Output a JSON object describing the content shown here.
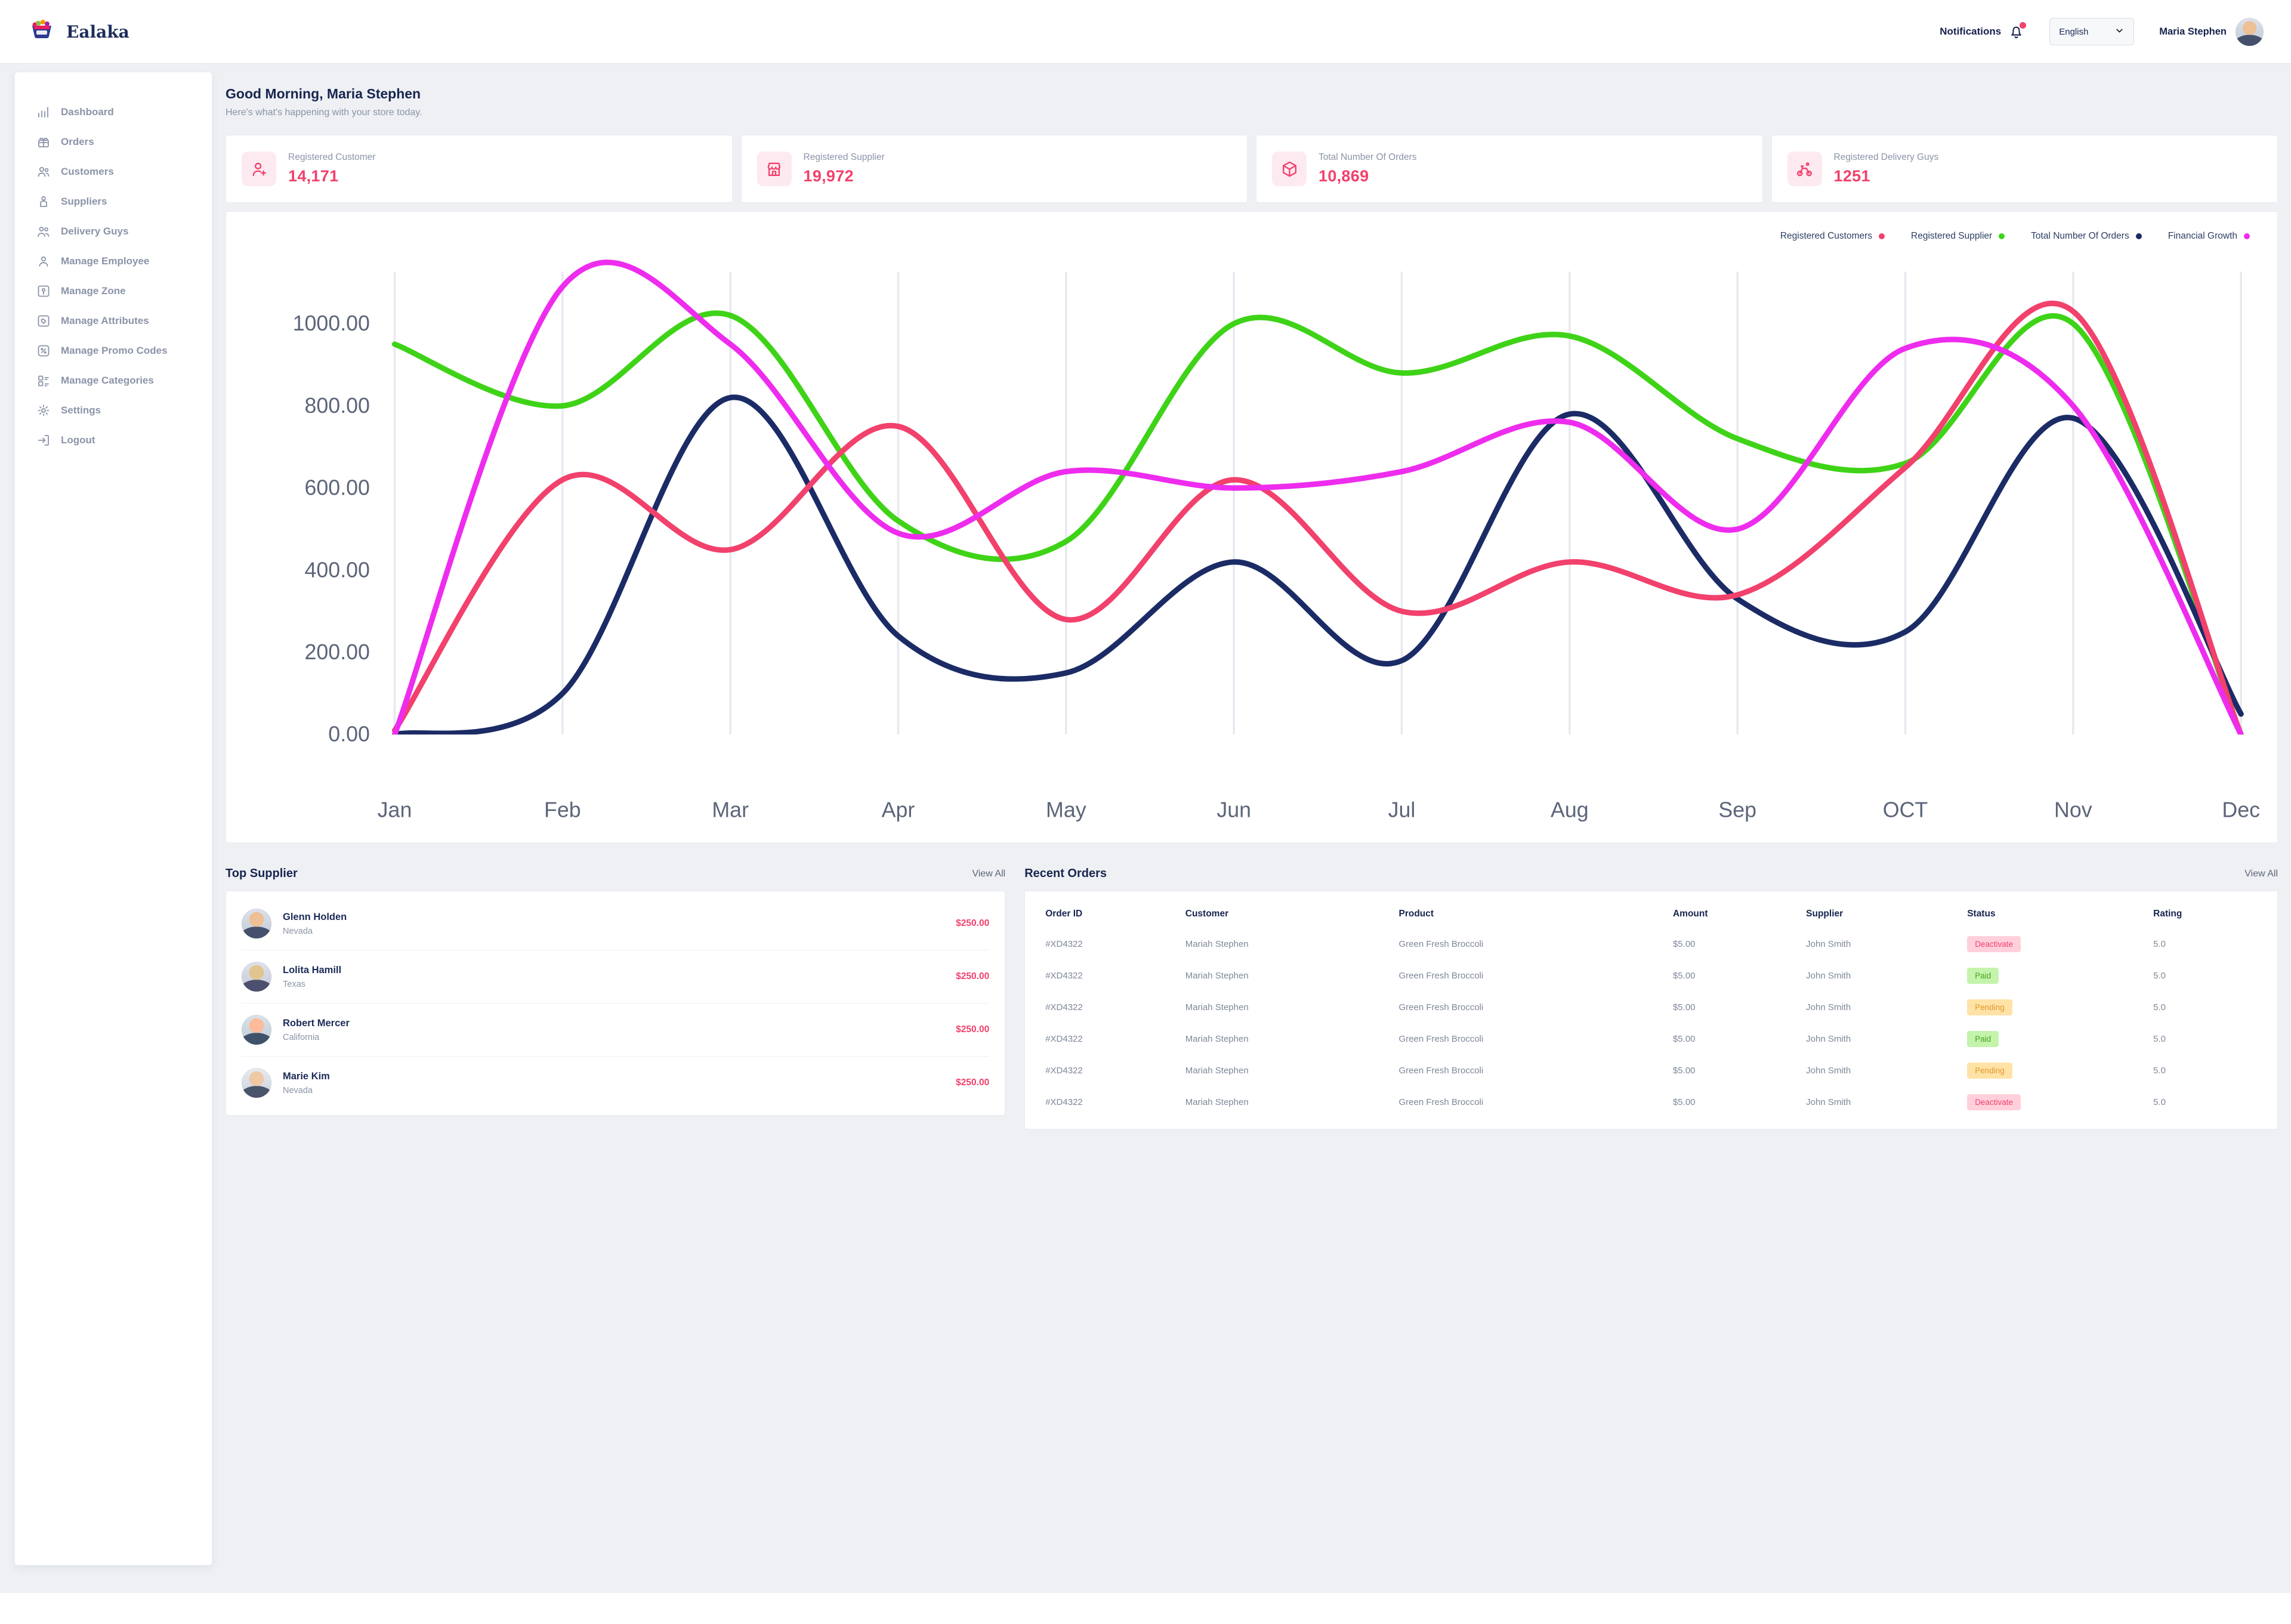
{
  "header": {
    "brand": "Ealaka",
    "notifications": "Notifications",
    "language": "English",
    "user": "Maria Stephen"
  },
  "sidebar": [
    {
      "label": "Dashboard",
      "icon": "dashboard-icon"
    },
    {
      "label": "Orders",
      "icon": "orders-icon"
    },
    {
      "label": "Customers",
      "icon": "customers-icon"
    },
    {
      "label": "Suppliers",
      "icon": "suppliers-icon"
    },
    {
      "label": "Delivery Guys",
      "icon": "delivery-icon"
    },
    {
      "label": "Manage Employee",
      "icon": "employee-icon"
    },
    {
      "label": "Manage Zone",
      "icon": "zone-icon"
    },
    {
      "label": "Manage Attributes",
      "icon": "attributes-icon"
    },
    {
      "label": "Manage Promo Codes",
      "icon": "promo-icon"
    },
    {
      "label": "Manage Categories",
      "icon": "categories-icon"
    },
    {
      "label": "Settings",
      "icon": "settings-icon"
    },
    {
      "label": "Logout",
      "icon": "logout-icon"
    }
  ],
  "greeting": {
    "title": "Good Morning, Maria Stephen",
    "subtitle": "Here's what's happening with your store today."
  },
  "stats": [
    {
      "label": "Registered Customer",
      "value": "14,171",
      "icon": "user-plus-icon"
    },
    {
      "label": "Registered Supplier",
      "value": "19,972",
      "icon": "store-icon"
    },
    {
      "label": "Total Number Of Orders",
      "value": "10,869",
      "icon": "package-icon"
    },
    {
      "label": "Registered Delivery Guys",
      "value": "1251",
      "icon": "bike-icon"
    }
  ],
  "chart_data": {
    "type": "line",
    "x": [
      "Jan",
      "Feb",
      "Mar",
      "Apr",
      "May",
      "Jun",
      "Jul",
      "Aug",
      "Sep",
      "OCT",
      "Nov",
      "Dec"
    ],
    "ylim": [
      0,
      1100
    ],
    "yticks": [
      0,
      200,
      400,
      600,
      800,
      1000
    ],
    "ytick_labels": [
      "0.00",
      "200.00",
      "400.00",
      "600.00",
      "800.00",
      "1000.00"
    ],
    "grid": "vertical",
    "legend_position": "top-right",
    "series": [
      {
        "name": "Registered Customers",
        "color": "#f1416c",
        "values": [
          10,
          620,
          450,
          750,
          280,
          620,
          300,
          420,
          340,
          650,
          1030,
          0
        ]
      },
      {
        "name": "Registered Supplier",
        "color": "#3fd318",
        "values": [
          950,
          800,
          1020,
          520,
          470,
          1000,
          880,
          970,
          720,
          660,
          1000,
          0
        ]
      },
      {
        "name": "Total Number Of Orders",
        "color": "#1b2b65",
        "values": [
          0,
          100,
          820,
          240,
          150,
          420,
          180,
          780,
          330,
          250,
          770,
          50
        ]
      },
      {
        "name": "Financial Growth",
        "color": "#ee2cee",
        "values": [
          0,
          1090,
          950,
          490,
          640,
          600,
          640,
          760,
          500,
          940,
          800,
          0
        ]
      }
    ]
  },
  "top_supplier": {
    "title": "Top Supplier",
    "view_all": "View All",
    "items": [
      {
        "name": "Glenn Holden",
        "location": "Nevada",
        "amount": "$250.00"
      },
      {
        "name": "Lolita Hamill",
        "location": "Texas",
        "amount": "$250.00"
      },
      {
        "name": "Robert Mercer",
        "location": "California",
        "amount": "$250.00"
      },
      {
        "name": "Marie Kim",
        "location": "Nevada",
        "amount": "$250.00"
      }
    ]
  },
  "recent_orders": {
    "title": "Recent Orders",
    "view_all": "View All",
    "columns": [
      "Order ID",
      "Customer",
      "Product",
      "Amount",
      "Supplier",
      "Status",
      "Rating"
    ],
    "rows": [
      {
        "order_id": "#XD4322",
        "customer": "Mariah Stephen",
        "product": "Green Fresh Broccoli",
        "amount": "$5.00",
        "supplier": "John Smith",
        "status": "Deactivate",
        "rating": "5.0"
      },
      {
        "order_id": "#XD4322",
        "customer": "Mariah Stephen",
        "product": "Green Fresh Broccoli",
        "amount": "$5.00",
        "supplier": "John Smith",
        "status": "Paid",
        "rating": "5.0"
      },
      {
        "order_id": "#XD4322",
        "customer": "Mariah Stephen",
        "product": "Green Fresh Broccoli",
        "amount": "$5.00",
        "supplier": "John Smith",
        "status": "Pending",
        "rating": "5.0"
      },
      {
        "order_id": "#XD4322",
        "customer": "Mariah Stephen",
        "product": "Green Fresh Broccoli",
        "amount": "$5.00",
        "supplier": "John Smith",
        "status": "Paid",
        "rating": "5.0"
      },
      {
        "order_id": "#XD4322",
        "customer": "Mariah Stephen",
        "product": "Green Fresh Broccoli",
        "amount": "$5.00",
        "supplier": "John Smith",
        "status": "Pending",
        "rating": "5.0"
      },
      {
        "order_id": "#XD4322",
        "customer": "Mariah Stephen",
        "product": "Green Fresh Broccoli",
        "amount": "$5.00",
        "supplier": "John Smith",
        "status": "Deactivate",
        "rating": "5.0"
      }
    ],
    "status_colors": {
      "Deactivate": {
        "bg": "#ffd0db",
        "text": "#f1416c"
      },
      "Paid": {
        "bg": "#c4f3ac",
        "text": "#4ba321"
      },
      "Pending": {
        "bg": "#ffe2a6",
        "text": "#e09a2f"
      }
    }
  }
}
